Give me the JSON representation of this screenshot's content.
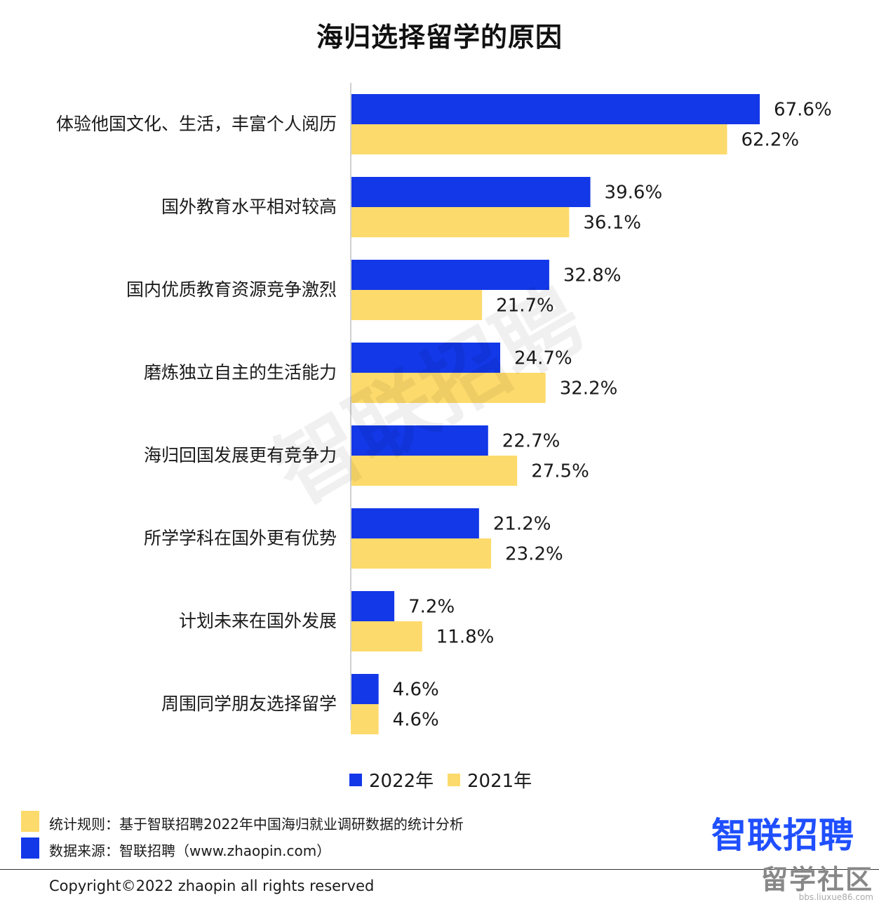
{
  "chart_data": {
    "type": "bar",
    "orientation": "horizontal",
    "title": "海归选择留学的原因",
    "categories": [
      "体验他国文化、生活，丰富个人阅历",
      "国外教育水平相对较高",
      "国内优质教育资源竞争激烈",
      "磨炼独立自主的生活能力",
      "海归回国发展更有竞争力",
      "所学学科在国外更有优势",
      "计划未来在国外发展",
      "周围同学朋友选择留学"
    ],
    "series": [
      {
        "name": "2022年",
        "color": "#1338e8",
        "values": [
          67.6,
          39.6,
          32.8,
          24.7,
          22.7,
          21.2,
          7.2,
          4.6
        ],
        "labels": [
          "67.6%",
          "39.6%",
          "32.8%",
          "24.7%",
          "22.7%",
          "21.2%",
          "7.2%",
          "4.6%"
        ]
      },
      {
        "name": "2021年",
        "color": "#fdda6c",
        "values": [
          62.2,
          36.1,
          21.7,
          32.2,
          27.5,
          23.2,
          11.8,
          4.6
        ],
        "labels": [
          "62.2%",
          "36.1%",
          "21.7%",
          "32.2%",
          "27.5%",
          "23.2%",
          "11.8%",
          "4.6%"
        ]
      }
    ],
    "xlim": [
      0,
      70
    ],
    "grid": false,
    "legend_placement": "bottom"
  },
  "notes": {
    "rule_text": "统计规则：基于智联招聘2022年中国海归就业调研数据的统计分析",
    "rule_color": "#fdda6c",
    "source_text": "数据来源：智联招聘（www.zhaopin.com）",
    "source_color": "#1338e8"
  },
  "brand": {
    "logo_text": "智联招聘",
    "color": "#1f4fff"
  },
  "watermark": {
    "text": "智联招聘"
  },
  "corner_mark": {
    "text": "留学社区",
    "url_text": "bbs.liuxue86.com"
  },
  "footer": {
    "copyright": "Copyright©2022 zhaopin all rights reserved"
  }
}
